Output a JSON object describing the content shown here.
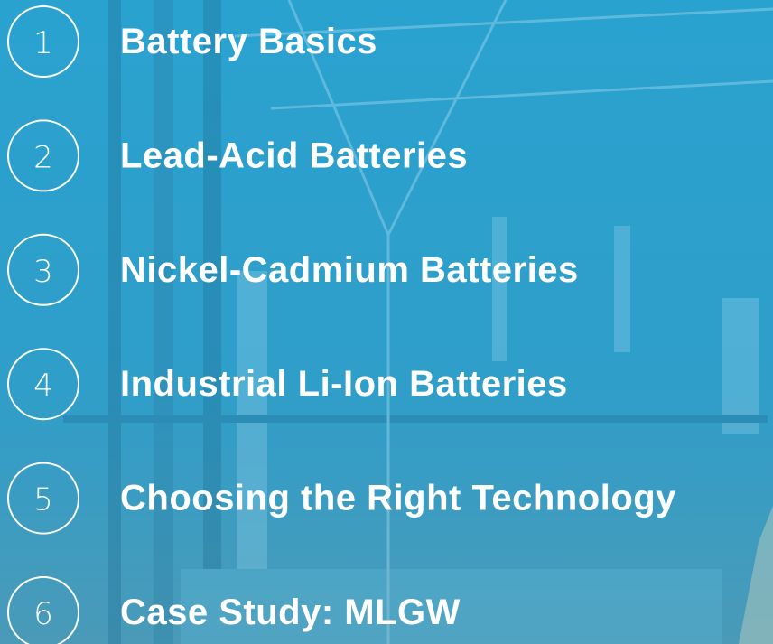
{
  "agenda": {
    "items": [
      {
        "number": 1,
        "label": "Battery Basics"
      },
      {
        "number": 2,
        "label": "Lead-Acid Batteries"
      },
      {
        "number": 3,
        "label": "Nickel-Cadmium Batteries"
      },
      {
        "number": 4,
        "label": "Industrial Li-Ion Batteries"
      },
      {
        "number": 5,
        "label": "Choosing the Right Technology"
      },
      {
        "number": 6,
        "label": "Case Study: MLGW"
      }
    ]
  }
}
